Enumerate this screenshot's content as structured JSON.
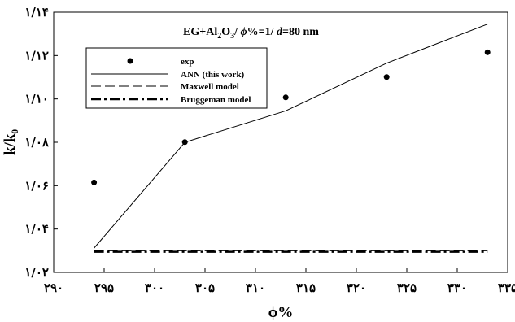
{
  "chart_data": {
    "type": "line",
    "title_parts": {
      "a": "EG+Al",
      "b": "2",
      "c": "O",
      "d": "3",
      "e": "/ ",
      "f": "ϕ",
      "g": "%=1/ ",
      "h": "d",
      "i": "=80 nm"
    },
    "xlabel": "ϕ%",
    "ylabel": "k/k₀",
    "xlim": [
      290,
      335
    ],
    "ylim": [
      1.02,
      1.14
    ],
    "x_ticks": [
      {
        "value": 290,
        "label": "۲۹۰"
      },
      {
        "value": 295,
        "label": "۲۹۵"
      },
      {
        "value": 300,
        "label": "۳۰۰"
      },
      {
        "value": 305,
        "label": "۳۰۵"
      },
      {
        "value": 310,
        "label": "۳۱۰"
      },
      {
        "value": 315,
        "label": "۳۱۵"
      },
      {
        "value": 320,
        "label": "۳۲۰"
      },
      {
        "value": 325,
        "label": "۳۲۵"
      },
      {
        "value": 330,
        "label": "۳۳۰"
      },
      {
        "value": 335,
        "label": "۳۳۵"
      }
    ],
    "y_ticks": [
      {
        "value": 1.02,
        "label": "۱/۰۲"
      },
      {
        "value": 1.04,
        "label": "۱/۰۴"
      },
      {
        "value": 1.06,
        "label": "۱/۰۶"
      },
      {
        "value": 1.08,
        "label": "۱/۰۸"
      },
      {
        "value": 1.1,
        "label": "۱/۱۰"
      },
      {
        "value": 1.12,
        "label": "۱/۱۲"
      },
      {
        "value": 1.14,
        "label": "۱/۱۴"
      }
    ],
    "grid": false,
    "legend_position": "top-left",
    "series": [
      {
        "name": "exp",
        "style": "points",
        "x": [
          294,
          303,
          313,
          323,
          333
        ],
        "y": [
          1.0615,
          1.0801,
          1.1007,
          1.1101,
          1.1215
        ]
      },
      {
        "name": "ANN (this work)",
        "style": "solid",
        "x": [
          294,
          303,
          313,
          323,
          333
        ],
        "y": [
          1.0312,
          1.08,
          1.0945,
          1.1165,
          1.1345
        ]
      },
      {
        "name": "Maxwell model",
        "style": "dashed",
        "x": [
          294,
          333
        ],
        "y": [
          1.03,
          1.03
        ]
      },
      {
        "name": "Bruggeman model",
        "style": "dashdot",
        "x": [
          294,
          333
        ],
        "y": [
          1.0295,
          1.0295
        ]
      }
    ]
  }
}
